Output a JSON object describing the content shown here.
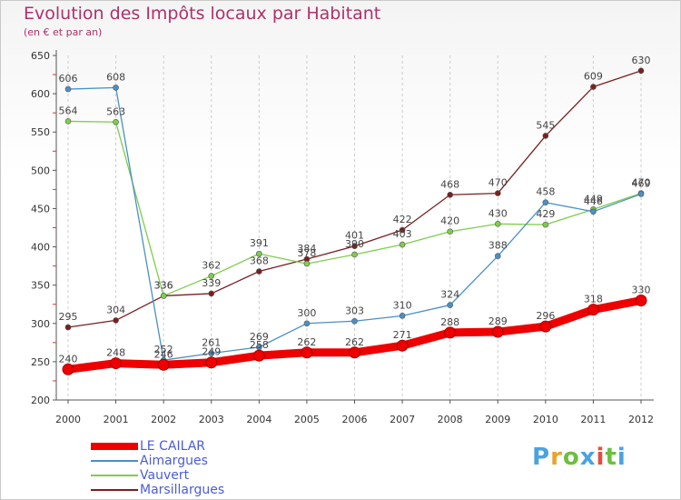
{
  "header": {
    "title": "Evolution des Impôts locaux par Habitant",
    "subtitle": "(en € et par an)"
  },
  "colors": {
    "title": "#b0306a",
    "legend_text": "#4b5cd6"
  },
  "logo": {
    "text": "Proxiti",
    "colors": [
      "#4aa3df",
      "#e8a32e",
      "#6cbf3f",
      "#4aa3df",
      "#e84b3c",
      "#6cbf3f",
      "#4aa3df"
    ]
  },
  "chart_data": {
    "type": "line",
    "title": "Evolution des Impôts locaux par Habitant",
    "subtitle": "(en € et par an)",
    "x": [
      "2000",
      "2001",
      "2002",
      "2003",
      "2004",
      "2005",
      "2006",
      "2007",
      "2008",
      "2009",
      "2010",
      "2011",
      "2012"
    ],
    "ylim": [
      200,
      650
    ],
    "yticks": [
      "200",
      "250",
      "300",
      "350",
      "400",
      "450",
      "500",
      "550",
      "600",
      "650"
    ],
    "grid": "vertical dashed",
    "legend_position": "bottom-left",
    "series": [
      {
        "name": "LE CAILAR",
        "color": "#ee0000",
        "width": 9,
        "values": [
          240,
          248,
          246,
          249,
          258,
          262,
          262,
          271,
          288,
          289,
          296,
          318,
          330
        ],
        "labels": [
          "240",
          "248",
          "246",
          "249",
          "258",
          "262",
          "262",
          "271",
          "288",
          "289",
          "296",
          "318",
          "330"
        ]
      },
      {
        "name": "Aimargues",
        "color": "#4a90c8",
        "width": 1.3,
        "values": [
          606,
          608,
          252,
          261,
          269,
          300,
          303,
          310,
          324,
          388,
          458,
          446,
          469
        ],
        "labels": [
          "606",
          "608",
          "252",
          "261",
          "269",
          "300",
          "303",
          "310",
          "324",
          "388",
          "458",
          "446",
          "469"
        ]
      },
      {
        "name": "Vauvert",
        "color": "#7dce4a",
        "width": 1.3,
        "values": [
          564,
          563,
          336,
          362,
          391,
          378,
          390,
          403,
          420,
          430,
          429,
          449,
          470
        ],
        "labels": [
          "564",
          "563",
          "336",
          "362",
          "391",
          "378",
          "390",
          "403",
          "420",
          "430",
          "429",
          "449",
          "470"
        ]
      },
      {
        "name": "Marsillargues",
        "color": "#7a1f1f",
        "width": 1.3,
        "values": [
          295,
          304,
          336,
          339,
          368,
          384,
          401,
          422,
          468,
          470,
          545,
          609,
          630
        ],
        "labels": [
          "295",
          "304",
          "336",
          "339",
          "368",
          "384",
          "401",
          "422",
          "468",
          "470",
          "545",
          "609",
          "630"
        ]
      }
    ]
  }
}
